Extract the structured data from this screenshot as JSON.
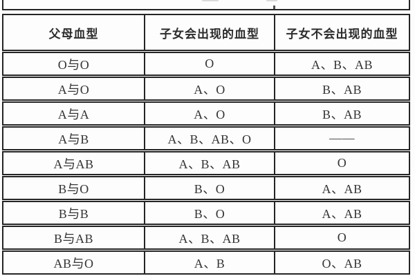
{
  "colors": {
    "border": "#242424",
    "text": "#333333",
    "header_text": "#2b2b2b",
    "dash": "#666666",
    "background": "#fdfdfd"
  },
  "table": {
    "columns": [
      "父母血型",
      "子女会出现的血型",
      "子女不会出现的血型"
    ],
    "rows": [
      {
        "parents": "O与O",
        "possible": "O",
        "impossible": "A、B、AB"
      },
      {
        "parents": "A与O",
        "possible": "A、O",
        "impossible": "B、AB"
      },
      {
        "parents": "A与A",
        "possible": "A、O",
        "impossible": "B、AB"
      },
      {
        "parents": "A与B",
        "possible": "A、B、AB、O",
        "impossible": "——"
      },
      {
        "parents": "A与AB",
        "possible": "A、B、AB",
        "impossible": "O"
      },
      {
        "parents": "B与O",
        "possible": "B、O",
        "impossible": "A、AB"
      },
      {
        "parents": "B与B",
        "possible": "B、O",
        "impossible": "A、AB"
      },
      {
        "parents": "B与AB",
        "possible": "A、B、AB",
        "impossible": "O"
      },
      {
        "parents": "AB与O",
        "possible": "A、B",
        "impossible": "O、AB"
      }
    ]
  }
}
